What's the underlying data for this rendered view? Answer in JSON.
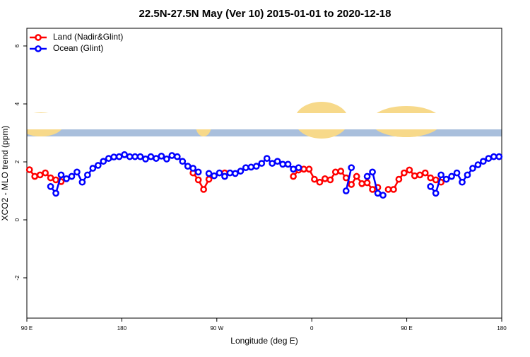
{
  "chart_data": {
    "type": "line",
    "title": "22.5N-27.5N May (Ver 10)   2015-01-01 to 2020-12-18",
    "x_label": "Longitude (deg E)",
    "y_label": "XCO2 - MLO trend (ppm)",
    "x": [
      92.5,
      97.5,
      102.5,
      107.5,
      112.5,
      117.5,
      122.5,
      127.5,
      132.5,
      137.5,
      142.5,
      147.5,
      152.5,
      157.5,
      162.5,
      167.5,
      172.5,
      177.5,
      182.5,
      187.5,
      192.5,
      197.5,
      202.5,
      207.5,
      212.5,
      217.5,
      222.5,
      227.5,
      232.5,
      237.5,
      242.5,
      247.5,
      252.5,
      257.5,
      262.5,
      267.5,
      272.5,
      277.5,
      282.5,
      287.5,
      292.5,
      297.5,
      302.5,
      307.5,
      312.5,
      317.5,
      322.5,
      327.5,
      332.5,
      337.5,
      342.5,
      347.5,
      352.5,
      357.5,
      362.5,
      367.5,
      372.5,
      377.5,
      382.5,
      387.5,
      392.5,
      397.5,
      402.5,
      407.5,
      412.5,
      417.5,
      422.5,
      427.5,
      432.5,
      437.5,
      442.5,
      447.5,
      452.5,
      457.5,
      462.5,
      467.5,
      472.5,
      477.5,
      482.5,
      487.5,
      492.5,
      497.5,
      502.5,
      507.5,
      512.5,
      517.5,
      522.5,
      527.5,
      532.5,
      537.5
    ],
    "series": [
      {
        "name": "Land (Nadir&Glint)",
        "color": "#ff0000",
        "values": [
          1.73,
          1.5,
          1.55,
          1.62,
          1.45,
          1.38,
          1.32,
          null,
          null,
          null,
          null,
          null,
          null,
          null,
          null,
          null,
          null,
          null,
          null,
          null,
          null,
          null,
          null,
          null,
          null,
          null,
          null,
          null,
          null,
          null,
          null,
          1.62,
          1.38,
          1.05,
          1.4,
          null,
          null,
          1.62,
          null,
          null,
          null,
          null,
          null,
          null,
          null,
          null,
          null,
          null,
          null,
          null,
          1.5,
          1.72,
          1.75,
          1.75,
          1.4,
          1.3,
          1.42,
          1.38,
          1.65,
          1.68,
          1.45,
          1.22,
          1.5,
          1.25,
          1.28,
          1.05,
          1.12,
          null,
          1.05,
          1.05,
          1.4,
          1.62,
          1.72,
          1.52,
          1.55,
          1.62,
          1.45,
          1.38,
          1.3,
          null,
          null,
          null,
          null,
          null,
          null,
          null,
          null,
          null,
          null,
          null
        ]
      },
      {
        "name": "Ocean (Glint)",
        "color": "#0000ff",
        "values": [
          null,
          null,
          null,
          null,
          1.15,
          0.92,
          1.55,
          1.42,
          1.5,
          1.65,
          1.3,
          1.55,
          1.78,
          1.88,
          2.02,
          2.12,
          2.17,
          2.18,
          2.25,
          2.18,
          2.18,
          2.18,
          2.1,
          2.18,
          2.12,
          2.2,
          2.1,
          2.22,
          2.18,
          2.02,
          1.85,
          1.78,
          1.65,
          null,
          1.6,
          1.52,
          1.62,
          1.5,
          1.62,
          1.6,
          1.68,
          1.8,
          1.82,
          1.85,
          1.95,
          2.12,
          1.95,
          2.02,
          1.92,
          1.92,
          1.75,
          1.8,
          null,
          null,
          null,
          null,
          null,
          null,
          null,
          null,
          1.0,
          1.8,
          null,
          null,
          1.5,
          1.65,
          0.92,
          0.85,
          null,
          null,
          null,
          null,
          null,
          null,
          null,
          null,
          1.15,
          0.92,
          1.55,
          1.4,
          1.5,
          1.62,
          1.3,
          1.55,
          1.78,
          1.9,
          2.02,
          2.12,
          2.18,
          2.18
        ]
      }
    ],
    "xlim": [
      90,
      540
    ],
    "xticks": [
      {
        "value": 90,
        "label": "90 E"
      },
      180,
      {
        "value": 270,
        "label": "90 W"
      },
      {
        "value": 360,
        "label": "0"
      },
      {
        "value": 450,
        "label": "90 E"
      },
      {
        "value": 540,
        "label": "180"
      }
    ],
    "ylim": [
      -3.39,
      6.61
    ],
    "yticks": [
      -2,
      0,
      2,
      4,
      6
    ],
    "legend": "top-left"
  }
}
